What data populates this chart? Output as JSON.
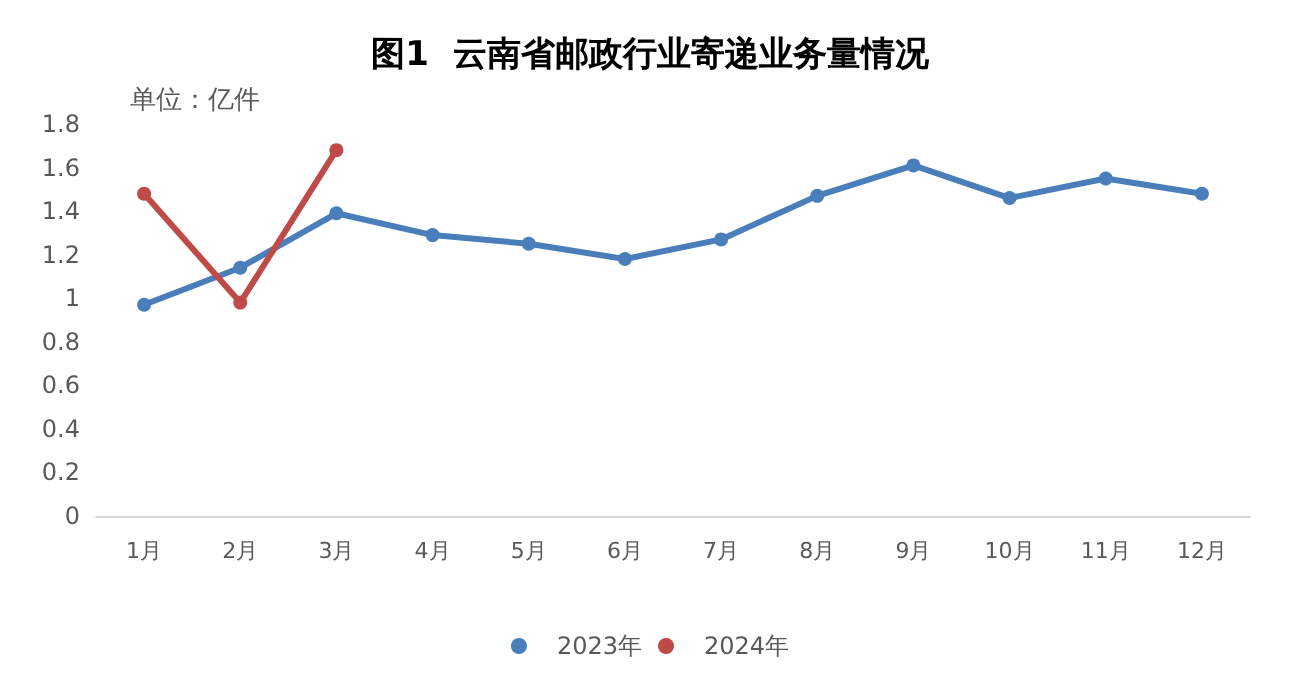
{
  "chart_data": {
    "type": "line",
    "title": "图1  云南省邮政行业寄递业务量情况",
    "annotations": [
      "单位：亿件"
    ],
    "categories": [
      "1月",
      "2月",
      "3月",
      "4月",
      "5月",
      "6月",
      "7月",
      "8月",
      "9月",
      "10月",
      "11月",
      "12月"
    ],
    "series": [
      {
        "name": "2023年",
        "color": "#4a7ebb",
        "values": [
          0.97,
          1.14,
          1.39,
          1.29,
          1.25,
          1.18,
          1.27,
          1.47,
          1.61,
          1.46,
          1.55,
          1.48
        ]
      },
      {
        "name": "2024年",
        "color": "#be4b48",
        "values": [
          1.48,
          0.98,
          1.68,
          null,
          null,
          null,
          null,
          null,
          null,
          null,
          null,
          null
        ]
      }
    ],
    "ylim": [
      0,
      1.8
    ],
    "yticks": [
      0,
      0.2,
      0.4,
      0.6,
      0.8,
      1,
      1.2,
      1.4,
      1.6,
      1.8
    ],
    "grid": false,
    "legend": "bottom",
    "marker": "circle",
    "line_style": "solid"
  }
}
